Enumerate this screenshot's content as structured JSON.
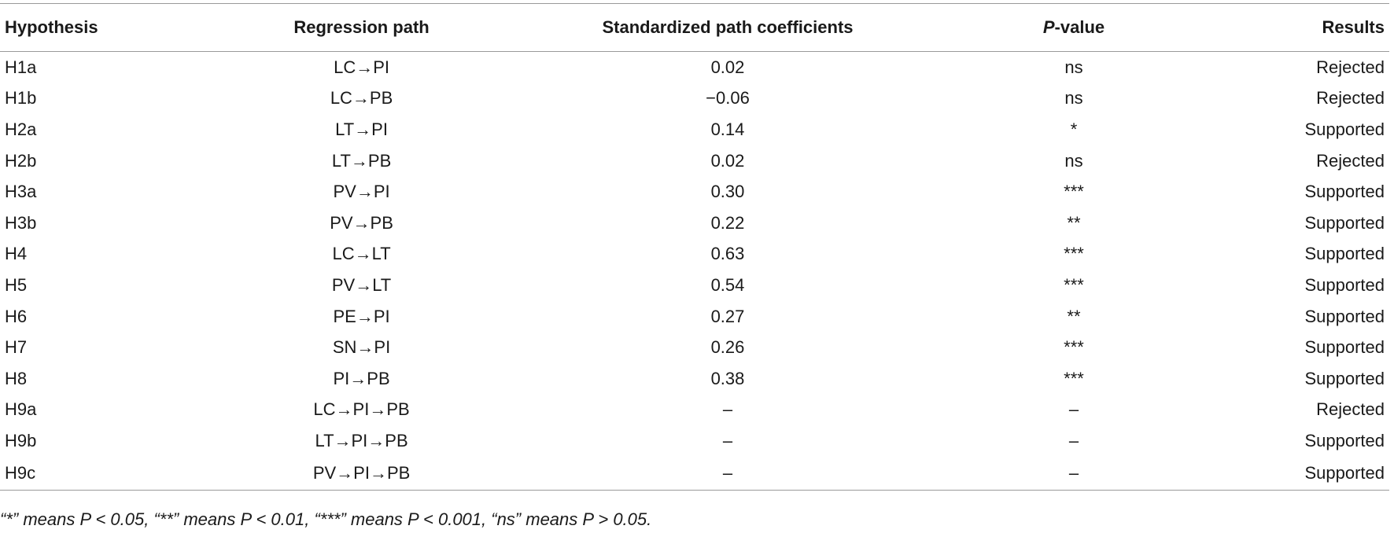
{
  "table": {
    "headers": {
      "hypothesis": "Hypothesis",
      "path": "Regression path",
      "coef": "Standardized path coefficients",
      "pvalue_letter": "P",
      "pvalue_rest": "-value",
      "results": "Results"
    },
    "rows": [
      {
        "hypothesis": "H1a",
        "path": "LC→PI",
        "coef": "0.02",
        "pvalue": "ns",
        "result": "Rejected"
      },
      {
        "hypothesis": "H1b",
        "path": "LC→PB",
        "coef": "−0.06",
        "pvalue": "ns",
        "result": "Rejected"
      },
      {
        "hypothesis": "H2a",
        "path": "LT→PI",
        "coef": "0.14",
        "pvalue": "*",
        "result": "Supported"
      },
      {
        "hypothesis": "H2b",
        "path": "LT→PB",
        "coef": "0.02",
        "pvalue": "ns",
        "result": "Rejected"
      },
      {
        "hypothesis": "H3a",
        "path": "PV→PI",
        "coef": "0.30",
        "pvalue": "***",
        "result": "Supported"
      },
      {
        "hypothesis": "H3b",
        "path": "PV→PB",
        "coef": "0.22",
        "pvalue": "**",
        "result": "Supported"
      },
      {
        "hypothesis": "H4",
        "path": "LC→LT",
        "coef": "0.63",
        "pvalue": "***",
        "result": "Supported"
      },
      {
        "hypothesis": "H5",
        "path": "PV→LT",
        "coef": "0.54",
        "pvalue": "***",
        "result": "Supported"
      },
      {
        "hypothesis": "H6",
        "path": "PE→PI",
        "coef": "0.27",
        "pvalue": "**",
        "result": "Supported"
      },
      {
        "hypothesis": "H7",
        "path": "SN→PI",
        "coef": "0.26",
        "pvalue": "***",
        "result": "Supported"
      },
      {
        "hypothesis": "H8",
        "path": "PI→PB",
        "coef": "0.38",
        "pvalue": "***",
        "result": "Supported"
      },
      {
        "hypothesis": "H9a",
        "path": "LC→PI→PB",
        "coef": "–",
        "pvalue": "–",
        "result": "Rejected"
      },
      {
        "hypothesis": "H9b",
        "path": "LT→PI→PB",
        "coef": "–",
        "pvalue": "–",
        "result": "Supported"
      },
      {
        "hypothesis": "H9c",
        "path": "PV→PI→PB",
        "coef": "–",
        "pvalue": "–",
        "result": "Supported"
      }
    ]
  },
  "footnote": "“*” means P < 0.05, “**” means P < 0.01, “***” means P < 0.001, “ns” means P > 0.05."
}
